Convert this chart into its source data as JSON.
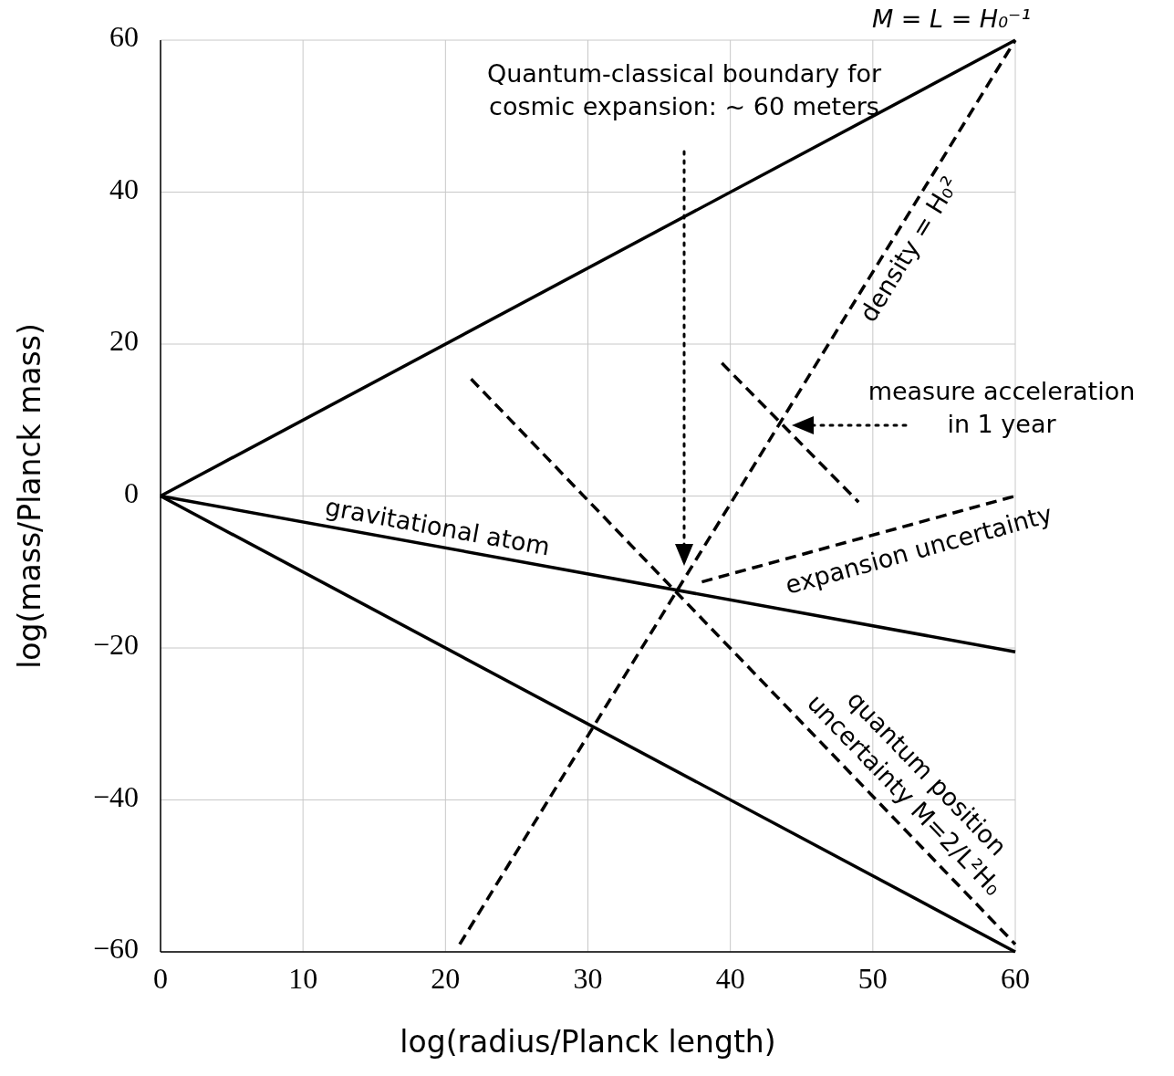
{
  "chart_data": {
    "type": "line",
    "xlabel": "log(radius/Planck length)",
    "ylabel": "log(mass/Planck mass)",
    "xlim": [
      0,
      60
    ],
    "ylim": [
      -60,
      60
    ],
    "xticks": [
      0,
      10,
      20,
      30,
      40,
      50,
      60
    ],
    "yticks": [
      {
        "value": -60,
        "label": "−60"
      },
      {
        "value": -40,
        "label": "−40"
      },
      {
        "value": -20,
        "label": "−20"
      },
      0,
      20,
      40,
      60
    ],
    "grid": true,
    "series": [
      {
        "name": "M = L = H₀⁻¹",
        "color": "#000000",
        "line_style": "solid",
        "x": [
          0,
          60
        ],
        "values": [
          0,
          60
        ]
      },
      {
        "name": "gravitational atom",
        "color": "#000000",
        "line_style": "solid",
        "x": [
          0,
          60
        ],
        "values": [
          0,
          -20.5
        ]
      },
      {
        "color": "#000000",
        "line_style": "solid",
        "x": [
          0,
          60
        ],
        "values": [
          0,
          -60
        ]
      },
      {
        "name": "density = H₀²",
        "color": "#000000",
        "line_style": "dashed",
        "x": [
          21,
          60
        ],
        "values": [
          -59,
          60
        ]
      },
      {
        "name": "quantum position\nuncertainty M=2/L²H₀",
        "color": "#000000",
        "line_style": "dashed",
        "x": [
          21.8,
          60
        ],
        "values": [
          15.4,
          -59
        ]
      },
      {
        "color": "#000000",
        "line_style": "dashed",
        "x": [
          39.4,
          49
        ],
        "values": [
          17.5,
          -0.8
        ]
      },
      {
        "name": "expansion uncertainty",
        "color": "#000000",
        "line_style": "dashed",
        "x": [
          38,
          60
        ],
        "values": [
          -11.3,
          0
        ]
      }
    ],
    "annotations": [
      "Quantum-classical boundary for\ncosmic expansion: ~ 60 meters",
      "measure acceleration\nin 1 year"
    ]
  }
}
